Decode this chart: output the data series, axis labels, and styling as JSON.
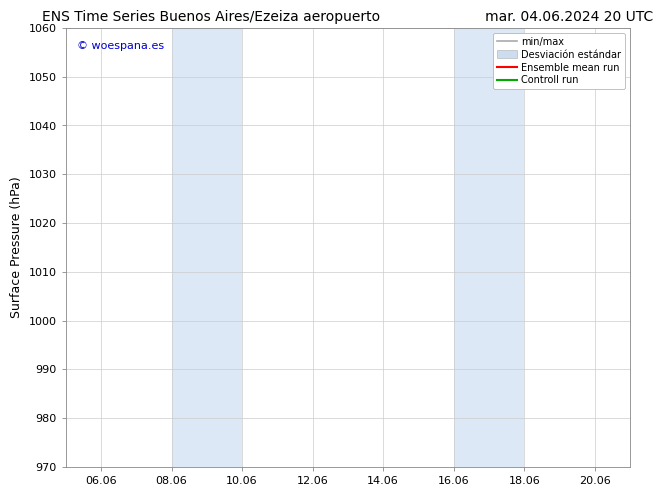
{
  "title_left": "ENS Time Series Buenos Aires/Ezeiza aeropuerto",
  "title_right": "mar. 04.06.2024 20 UTC",
  "ylabel": "Surface Pressure (hPa)",
  "ylim": [
    970,
    1060
  ],
  "yticks": [
    970,
    980,
    990,
    1000,
    1010,
    1020,
    1030,
    1040,
    1050,
    1060
  ],
  "xtick_labels": [
    "06.06",
    "08.06",
    "10.06",
    "12.06",
    "14.06",
    "16.06",
    "18.06",
    "20.06"
  ],
  "xtick_positions": [
    1,
    3,
    5,
    7,
    9,
    11,
    13,
    15
  ],
  "xlim": [
    0,
    16
  ],
  "shaded_regions": [
    {
      "xstart": 3,
      "xend": 5,
      "color": "#dce8f5"
    },
    {
      "xstart": 11,
      "xend": 13,
      "color": "#dce8f5"
    }
  ],
  "watermark": "© woespana.es",
  "watermark_color": "#0000cc",
  "legend_labels": [
    "min/max",
    "Desviación estándar",
    "Ensemble mean run",
    "Controll run"
  ],
  "legend_colors": [
    "#aaaaaa",
    "#ccddf0",
    "#ff0000",
    "#00aa00"
  ],
  "bg_color": "#ffffff",
  "grid_color": "#cccccc",
  "title_fontsize": 10,
  "ylabel_fontsize": 9,
  "tick_fontsize": 8,
  "legend_fontsize": 7,
  "watermark_fontsize": 8
}
